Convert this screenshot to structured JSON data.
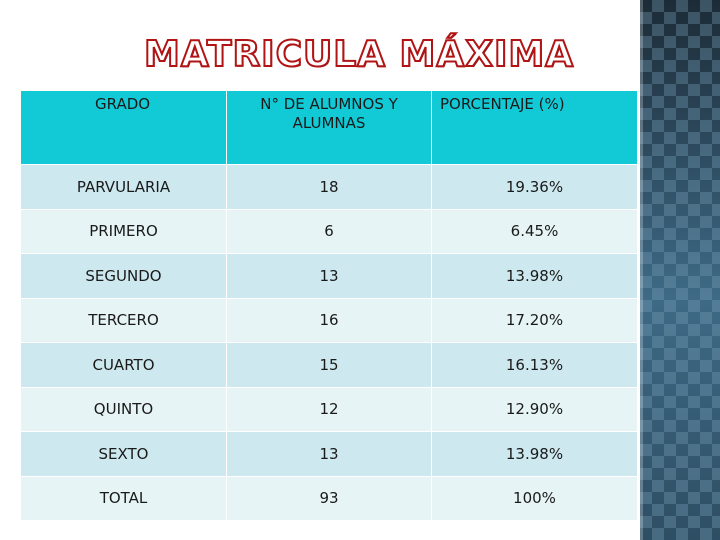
{
  "slide": {
    "title": "MATRICULA MÁXIMA",
    "accent_color": "#b11414",
    "header_color": "#12cad6",
    "row_colors": [
      "#cde9ef",
      "#e6f4f6"
    ]
  },
  "table": {
    "headers": [
      "GRADO",
      "N° DE ALUMNOS Y ALUMNAS",
      "PORCENTAJE (%)"
    ],
    "rows": [
      {
        "grado": "PARVULARIA",
        "alumnos": "18",
        "porcentaje": "19.36%"
      },
      {
        "grado": "PRIMERO",
        "alumnos": "6",
        "porcentaje": "6.45%"
      },
      {
        "grado": "SEGUNDO",
        "alumnos": "13",
        "porcentaje": "13.98%"
      },
      {
        "grado": "TERCERO",
        "alumnos": "16",
        "porcentaje": "17.20%"
      },
      {
        "grado": "CUARTO",
        "alumnos": "15",
        "porcentaje": "16.13%"
      },
      {
        "grado": "QUINTO",
        "alumnos": "12",
        "porcentaje": "12.90%"
      },
      {
        "grado": "SEXTO",
        "alumnos": "13",
        "porcentaje": "13.98%"
      },
      {
        "grado": "TOTAL",
        "alumnos": "93",
        "porcentaje": "100%"
      }
    ]
  }
}
